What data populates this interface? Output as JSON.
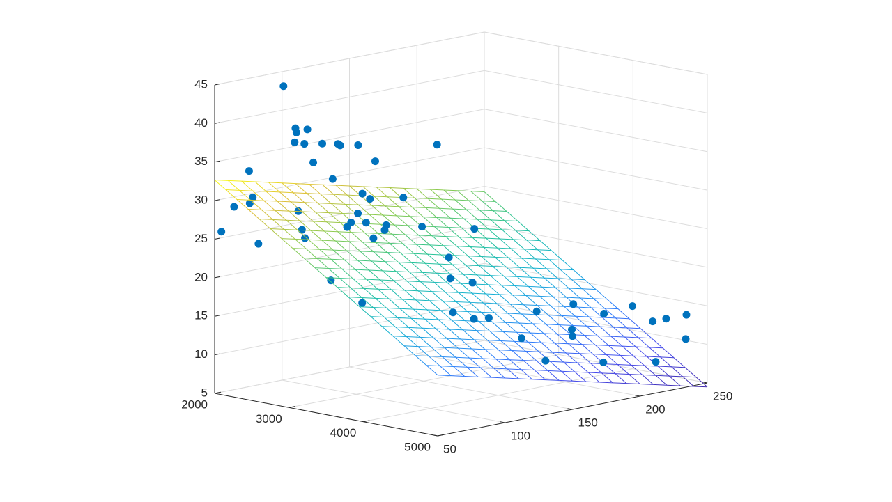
{
  "chart_data": {
    "type": "scatter",
    "subtype": "3d-scatter-with-fitted-surface",
    "title": "",
    "xlabel": "",
    "ylabel": "",
    "zlabel": "",
    "x_axis": {
      "range": [
        2000,
        5000
      ],
      "ticks": [
        2000,
        3000,
        4000,
        5000
      ],
      "tick_labels": [
        "2000",
        "3000",
        "4000",
        "5000"
      ]
    },
    "y_axis": {
      "range": [
        50,
        250
      ],
      "ticks": [
        50,
        100,
        150,
        200,
        250
      ],
      "tick_labels": [
        "50",
        "100",
        "150",
        "200",
        "250"
      ]
    },
    "z_axis": {
      "range": [
        5,
        45
      ],
      "ticks": [
        5,
        10,
        15,
        20,
        25,
        30,
        35,
        40,
        45
      ],
      "tick_labels": [
        "5",
        "10",
        "15",
        "20",
        "25",
        "30",
        "35",
        "40",
        "45"
      ]
    },
    "grid": true,
    "box": true,
    "legend": "none",
    "colors": {
      "points": "#0072bd",
      "surface_colormap": "parula",
      "axis": "#262626",
      "grid": "#dcdcdc"
    },
    "series": [
      {
        "kind": "scatter",
        "points": [
          [
            2000,
            55,
            25.8
          ],
          [
            2010,
            75,
            33.0
          ],
          [
            2080,
            60,
            29.0
          ],
          [
            2150,
            70,
            30.0
          ],
          [
            2200,
            65,
            29.5
          ],
          [
            2190,
            72,
            24.0
          ],
          [
            2110,
            95,
            43.5
          ],
          [
            2180,
            100,
            38.0
          ],
          [
            2230,
            98,
            37.6
          ],
          [
            2250,
            105,
            37.8
          ],
          [
            2260,
            95,
            36.5
          ],
          [
            2300,
            100,
            36.2
          ],
          [
            2360,
            110,
            36.0
          ],
          [
            2480,
            115,
            36.0
          ],
          [
            2420,
            100,
            34.0
          ],
          [
            2600,
            110,
            36.2
          ],
          [
            2660,
            120,
            36.0
          ],
          [
            2800,
            125,
            34.0
          ],
          [
            2590,
            105,
            32.0
          ],
          [
            2400,
            90,
            28.0
          ],
          [
            2540,
            85,
            26.0
          ],
          [
            2580,
            85,
            25.0
          ],
          [
            2900,
            110,
            30.5
          ],
          [
            3000,
            110,
            30.0
          ],
          [
            3020,
            100,
            28.5
          ],
          [
            3020,
            95,
            27.5
          ],
          [
            3020,
            92,
            27.0
          ],
          [
            3130,
            100,
            27.5
          ],
          [
            3220,
            110,
            27.0
          ],
          [
            3320,
            95,
            26.0
          ],
          [
            3380,
            100,
            27.0
          ],
          [
            3450,
            110,
            31.0
          ],
          [
            3450,
            135,
            37.0
          ],
          [
            3520,
            120,
            27.0
          ],
          [
            3680,
            150,
            26.0
          ],
          [
            3700,
            130,
            23.0
          ],
          [
            3020,
            80,
            20.5
          ],
          [
            3350,
            85,
            18.0
          ],
          [
            3900,
            120,
            21.0
          ],
          [
            4200,
            120,
            21.0
          ],
          [
            4300,
            100,
            18.0
          ],
          [
            4400,
            110,
            17.0
          ],
          [
            4600,
            110,
            17.5
          ],
          [
            4700,
            140,
            17.5
          ],
          [
            4860,
            120,
            15.0
          ],
          [
            4830,
            160,
            18.0
          ],
          [
            5000,
            150,
            14.5
          ],
          [
            4900,
            155,
            15.0
          ],
          [
            5000,
            130,
            12.0
          ],
          [
            4970,
            175,
            16.5
          ],
          [
            4900,
            200,
            16.5
          ],
          [
            4900,
            215,
            14.0
          ],
          [
            4900,
            225,
            14.0
          ],
          [
            4900,
            240,
            14.0
          ],
          [
            4780,
            185,
            9.5
          ],
          [
            4850,
            220,
            8.5
          ],
          [
            4800,
            245,
            10.5
          ]
        ]
      },
      {
        "kind": "surface",
        "equation": "z = 47.9769 - 0.0066*x - 0.0420*y",
        "x_range": [
          2000,
          5000
        ],
        "y_range": [
          50,
          250
        ],
        "grid_steps": 20
      }
    ]
  }
}
